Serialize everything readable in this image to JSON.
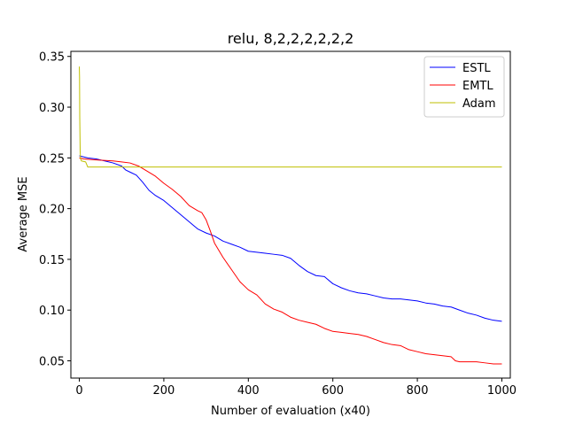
{
  "chart_data": {
    "type": "line",
    "title": "relu, 8,2,2,2,2,2,2",
    "xlabel": "Number of evaluation (x40)",
    "ylabel": "Average MSE",
    "xlim": [
      -20,
      1020
    ],
    "ylim": [
      0.033,
      0.355
    ],
    "xticks": [
      0,
      200,
      400,
      600,
      800,
      1000
    ],
    "xtick_labels": [
      "0",
      "200",
      "400",
      "600",
      "800",
      "1000"
    ],
    "yticks": [
      0.05,
      0.1,
      0.15,
      0.2,
      0.25,
      0.3,
      0.35
    ],
    "ytick_labels": [
      "0.05",
      "0.10",
      "0.15",
      "0.20",
      "0.25",
      "0.30",
      "0.35"
    ],
    "grid": false,
    "legend_position": "top-right",
    "series": [
      {
        "name": "ESTL",
        "color": "#0000ff",
        "x": [
          0,
          20,
          40,
          60,
          80,
          100,
          110,
          120,
          135,
          150,
          165,
          180,
          200,
          220,
          240,
          260,
          280,
          300,
          320,
          340,
          360,
          380,
          400,
          420,
          440,
          460,
          480,
          500,
          520,
          540,
          560,
          580,
          600,
          620,
          640,
          660,
          680,
          700,
          720,
          740,
          760,
          780,
          800,
          820,
          840,
          860,
          880,
          900,
          920,
          940,
          960,
          980,
          1000
        ],
        "y": [
          0.252,
          0.25,
          0.249,
          0.247,
          0.245,
          0.242,
          0.238,
          0.236,
          0.233,
          0.226,
          0.218,
          0.213,
          0.208,
          0.201,
          0.194,
          0.187,
          0.18,
          0.176,
          0.173,
          0.168,
          0.165,
          0.162,
          0.158,
          0.157,
          0.156,
          0.155,
          0.154,
          0.151,
          0.144,
          0.138,
          0.134,
          0.133,
          0.126,
          0.122,
          0.119,
          0.117,
          0.116,
          0.114,
          0.112,
          0.111,
          0.111,
          0.11,
          0.109,
          0.107,
          0.106,
          0.104,
          0.103,
          0.1,
          0.097,
          0.095,
          0.092,
          0.09,
          0.089
        ]
      },
      {
        "name": "EMTL",
        "color": "#ff0000",
        "x": [
          0,
          10,
          40,
          80,
          100,
          120,
          140,
          160,
          180,
          200,
          220,
          240,
          260,
          280,
          290,
          300,
          310,
          320,
          340,
          360,
          380,
          400,
          420,
          440,
          460,
          480,
          500,
          520,
          540,
          560,
          580,
          600,
          620,
          640,
          660,
          680,
          700,
          720,
          740,
          760,
          780,
          800,
          820,
          840,
          860,
          880,
          890,
          900,
          920,
          940,
          960,
          980,
          1000
        ],
        "y": [
          0.25,
          0.249,
          0.248,
          0.247,
          0.246,
          0.245,
          0.242,
          0.237,
          0.232,
          0.225,
          0.219,
          0.212,
          0.203,
          0.198,
          0.196,
          0.189,
          0.178,
          0.166,
          0.152,
          0.14,
          0.128,
          0.12,
          0.115,
          0.106,
          0.101,
          0.098,
          0.093,
          0.09,
          0.088,
          0.086,
          0.082,
          0.079,
          0.078,
          0.077,
          0.076,
          0.074,
          0.071,
          0.068,
          0.066,
          0.065,
          0.061,
          0.059,
          0.057,
          0.056,
          0.055,
          0.054,
          0.05,
          0.049,
          0.049,
          0.049,
          0.048,
          0.047,
          0.047
        ]
      },
      {
        "name": "Adam",
        "color": "#bfbf00",
        "x": [
          0,
          0.5,
          1,
          2,
          3,
          5,
          15,
          20,
          1000
        ],
        "y": [
          0.34,
          0.33,
          0.29,
          0.256,
          0.249,
          0.247,
          0.246,
          0.241,
          0.241
        ]
      }
    ]
  }
}
